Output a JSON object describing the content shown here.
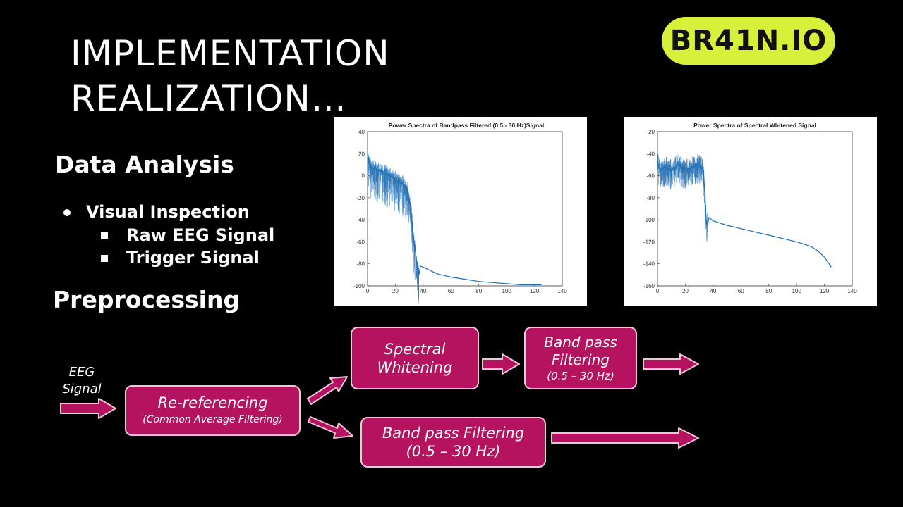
{
  "slide": {
    "title_line1": "IMPLEMENTATION",
    "title_line2": "REALIZATION…",
    "logo": "BR41N.IO",
    "data_analysis_heading": "Data Analysis",
    "bullet1": "Visual Inspection",
    "sub1": "Raw EEG Signal",
    "sub2": "Trigger Signal",
    "preprocessing_heading": "Preprocessing"
  },
  "flow": {
    "eeg_line1": "EEG",
    "eeg_line2": "Signal",
    "rereferencing": "Re-referencing",
    "rereferencing_sub": "(Common Average Filtering)",
    "spectral_whitening_line1": "Spectral",
    "spectral_whitening_line2": "Whitening",
    "bandpass_top_line1": "Band pass",
    "bandpass_top_line2": "Filtering",
    "bandpass_top_line3": "(0.5 – 30 Hz)",
    "bandpass_bottom_line1": "Band pass Filtering",
    "bandpass_bottom_line2": "(0.5 – 30 Hz)",
    "box_color": "#b5135f",
    "arrow_color": "#b5135f"
  },
  "chart_data": [
    {
      "type": "line",
      "title": "Power Spectra of Bandpass Filtered (0.5 - 30 Hz)Signal",
      "xlabel": "",
      "ylabel": "",
      "xlim": [
        0,
        140
      ],
      "ylim": [
        -100,
        40
      ],
      "xticks": [
        0,
        20,
        40,
        60,
        80,
        100,
        120,
        140
      ],
      "yticks": [
        40,
        20,
        0,
        -20,
        -40,
        -60,
        -80,
        -100
      ],
      "grid": false,
      "series_color": "#1f6fb5",
      "series": [
        {
          "x": [
            0,
            1,
            3,
            5,
            8,
            12,
            16,
            20,
            24,
            28,
            31,
            33,
            35,
            36,
            37,
            38,
            40,
            45,
            50,
            60,
            70,
            80,
            90,
            100,
            110,
            120,
            125
          ],
          "y": [
            20,
            12,
            8,
            6,
            5,
            3,
            0,
            -3,
            -6,
            -10,
            -28,
            -55,
            -75,
            -85,
            -90,
            -82,
            -83,
            -86,
            -89,
            -92,
            -94,
            -96,
            -97,
            -98,
            -99,
            -99,
            -99
          ]
        }
      ]
    },
    {
      "type": "line",
      "title": "Power Spectra of Spectral Whitened Signal",
      "xlabel": "",
      "ylabel": "",
      "xlim": [
        0,
        140
      ],
      "ylim": [
        -160,
        -20
      ],
      "xticks": [
        0,
        20,
        40,
        60,
        80,
        100,
        120,
        140
      ],
      "yticks": [
        -20,
        -40,
        -60,
        -80,
        -100,
        -120,
        -140,
        -160
      ],
      "grid": false,
      "series_color": "#1f6fb5",
      "series": [
        {
          "x": [
            0,
            2,
            5,
            10,
            15,
            20,
            25,
            30,
            33,
            34,
            35,
            36,
            37,
            40,
            50,
            60,
            70,
            80,
            90,
            100,
            110,
            115,
            120,
            125
          ],
          "y": [
            -48,
            -55,
            -52,
            -55,
            -50,
            -55,
            -52,
            -50,
            -55,
            -75,
            -100,
            -105,
            -98,
            -101,
            -105,
            -108,
            -111,
            -114,
            -117,
            -120,
            -124,
            -128,
            -134,
            -143
          ]
        }
      ]
    }
  ]
}
